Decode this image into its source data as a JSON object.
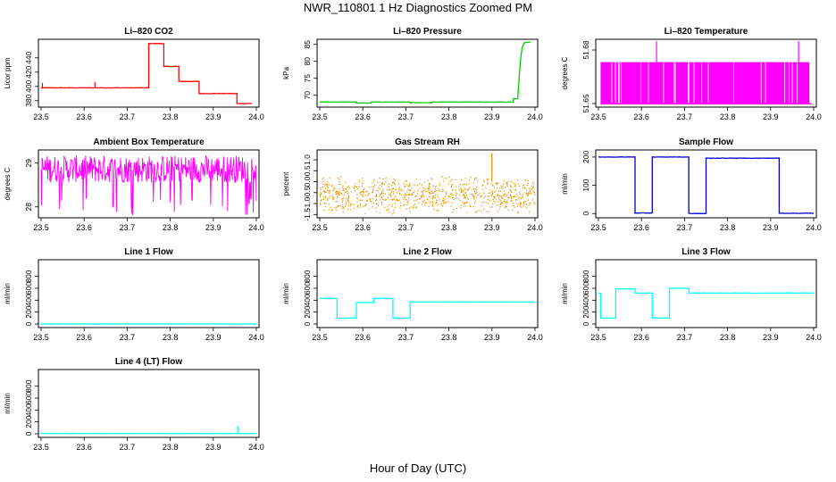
{
  "figure": {
    "title": "NWR_110801  1 Hz Diagnostics Zoomed PM",
    "xlabel": "Hour of Day (UTC)"
  },
  "chart_data": [
    {
      "type": "line",
      "title": "Li–820 CO2",
      "ylabel": "Licor ppm",
      "color": "#ff0000",
      "xlim": [
        23.5,
        24.0
      ],
      "ylim": [
        371,
        466
      ],
      "xticks": [
        23.5,
        23.6,
        23.7,
        23.8,
        23.9,
        24.0
      ],
      "yticks": [
        380,
        400,
        420,
        440
      ],
      "segments": [
        [
          23.5,
          23.75,
          398
        ],
        [
          23.75,
          23.785,
          460
        ],
        [
          23.785,
          23.82,
          428
        ],
        [
          23.82,
          23.867,
          407
        ],
        [
          23.867,
          23.955,
          390
        ],
        [
          23.955,
          23.99,
          376
        ]
      ],
      "spikes": [
        [
          23.503,
          405
        ],
        [
          23.625,
          406
        ]
      ]
    },
    {
      "type": "line",
      "title": "Li–820 Pressure",
      "ylabel": "kPa",
      "color": "#00cc00",
      "xlim": [
        23.5,
        24.0
      ],
      "ylim": [
        66.5,
        86.5
      ],
      "xticks": [
        23.5,
        23.6,
        23.7,
        23.8,
        23.9,
        24.0
      ],
      "yticks": [
        70,
        75,
        80,
        85
      ],
      "segments": [
        [
          23.5,
          23.585,
          68.0
        ],
        [
          23.585,
          23.62,
          67.7
        ],
        [
          23.62,
          23.71,
          68.0
        ],
        [
          23.71,
          23.76,
          67.8
        ],
        [
          23.76,
          23.95,
          68.0
        ],
        [
          23.95,
          23.96,
          69.0
        ]
      ],
      "rise": [
        [
          23.96,
          69.0
        ],
        [
          23.963,
          75.0
        ],
        [
          23.966,
          80.0
        ],
        [
          23.97,
          84.0
        ],
        [
          23.975,
          85.5
        ],
        [
          23.99,
          85.7
        ]
      ]
    },
    {
      "type": "line",
      "title": "Li–820 Temperature",
      "ylabel": "degrees C",
      "color": "#ff00ff",
      "xlim": [
        23.5,
        24.0
      ],
      "ylim": [
        51.648,
        51.686
      ],
      "xticks": [
        23.5,
        23.6,
        23.7,
        23.8,
        23.9,
        24.0
      ],
      "yticks": [
        51.65,
        51.68
      ],
      "levels": [
        51.6499,
        51.6732
      ],
      "spikes": [
        [
          23.635,
          51.6849
        ],
        [
          23.965,
          51.6849
        ]
      ]
    },
    {
      "type": "line",
      "title": "Ambient Box Temperature",
      "ylabel": "degrees C",
      "color": "#ff00ff",
      "xlim": [
        23.5,
        24.0
      ],
      "ylim": [
        27.75,
        29.3
      ],
      "xticks": [
        23.5,
        23.6,
        23.7,
        23.8,
        23.9,
        24.0
      ],
      "yticks": [
        28.0,
        29.0
      ],
      "band": [
        28.55,
        29.18
      ],
      "dips": [
        27.8,
        28.2
      ]
    },
    {
      "type": "scatter",
      "title": "Gas Stream RH",
      "ylabel": "percent",
      "color": "#e69900",
      "xlim": [
        23.5,
        24.0
      ],
      "ylim": [
        -1.65,
        1.45
      ],
      "xticks": [
        23.5,
        23.6,
        23.7,
        23.8,
        23.9,
        24.0
      ],
      "yticks": [
        -1.5,
        -1.0,
        -0.5,
        0.0,
        0.5,
        1.0
      ],
      "band": [
        -0.6,
        0.6
      ],
      "spikes": [
        [
          23.9,
          1.3
        ]
      ]
    },
    {
      "type": "line",
      "title": "Sample Flow",
      "ylabel": "ml/min",
      "color": "#0000cc",
      "xlim": [
        23.5,
        24.0
      ],
      "ylim": [
        -15,
        225
      ],
      "xticks": [
        23.5,
        23.6,
        23.7,
        23.8,
        23.9,
        24.0
      ],
      "yticks": [
        0,
        100,
        200
      ],
      "segments": [
        [
          23.5,
          23.585,
          200
        ],
        [
          23.585,
          23.625,
          2
        ],
        [
          23.625,
          23.71,
          200
        ],
        [
          23.71,
          23.75,
          0
        ],
        [
          23.75,
          23.92,
          196
        ],
        [
          23.92,
          24.0,
          1
        ]
      ]
    },
    {
      "type": "line",
      "title": "Line 1 Flow",
      "ylabel": "ml/min",
      "color": "#00ffff",
      "xlim": [
        23.5,
        24.0
      ],
      "ylim": [
        -60,
        1080
      ],
      "xticks": [
        23.5,
        23.6,
        23.7,
        23.8,
        23.9,
        24.0
      ],
      "yticks": [
        0,
        200,
        400,
        600,
        800
      ],
      "segments": [
        [
          23.5,
          24.0,
          0
        ]
      ]
    },
    {
      "type": "line",
      "title": "Line 2 Flow",
      "ylabel": "ml/min",
      "color": "#00ffff",
      "xlim": [
        23.5,
        24.0
      ],
      "ylim": [
        -60,
        1080
      ],
      "xticks": [
        23.5,
        23.6,
        23.7,
        23.8,
        23.9,
        24.0
      ],
      "yticks": [
        0,
        200,
        400,
        600,
        800
      ],
      "segments": [
        [
          23.5,
          23.54,
          430
        ],
        [
          23.54,
          23.585,
          100
        ],
        [
          23.585,
          23.625,
          360
        ],
        [
          23.625,
          23.67,
          430
        ],
        [
          23.67,
          23.71,
          100
        ],
        [
          23.71,
          24.0,
          370
        ]
      ]
    },
    {
      "type": "line",
      "title": "Line 3 Flow",
      "ylabel": "ml/min",
      "color": "#00ffff",
      "xlim": [
        23.5,
        24.0
      ],
      "ylim": [
        -60,
        1080
      ],
      "xticks": [
        23.5,
        23.6,
        23.7,
        23.8,
        23.9,
        24.0
      ],
      "yticks": [
        0,
        200,
        400,
        600,
        800
      ],
      "segments": [
        [
          23.5,
          23.505,
          520
        ],
        [
          23.505,
          23.54,
          100
        ],
        [
          23.54,
          23.585,
          590
        ],
        [
          23.585,
          23.625,
          520
        ],
        [
          23.625,
          23.665,
          100
        ],
        [
          23.665,
          23.71,
          600
        ],
        [
          23.71,
          24.0,
          520
        ]
      ]
    },
    {
      "type": "line",
      "title": "Line 4 (LT) Flow",
      "ylabel": "ml/min",
      "color": "#00ffff",
      "xlim": [
        23.5,
        24.0
      ],
      "ylim": [
        -60,
        1080
      ],
      "xticks": [
        23.5,
        23.6,
        23.7,
        23.8,
        23.9,
        24.0
      ],
      "yticks": [
        0,
        200,
        400,
        600,
        800
      ],
      "segments": [
        [
          23.5,
          24.0,
          5
        ]
      ],
      "spikes": [
        [
          23.957,
          130
        ]
      ]
    }
  ]
}
